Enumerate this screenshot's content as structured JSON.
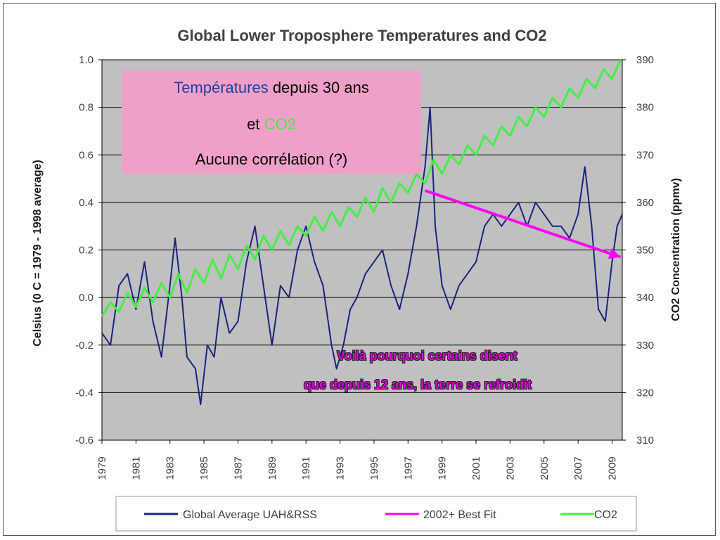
{
  "chart_data": {
    "type": "line",
    "title": "Global Lower Troposphere  Temperatures  and CO2",
    "ylabel_left": "Celsius (0 C = 1979 - 1998 average)",
    "ylabel_right": "CO2 Concentration (ppmv)",
    "ylim_left": [
      -0.6,
      1.0
    ],
    "ylim_right": [
      310,
      390
    ],
    "xlim": [
      1979,
      2009.6
    ],
    "left_ticks": [
      "1.0",
      "0.8",
      "0.6",
      "0.4",
      "0.2",
      "0.0",
      "-0.2",
      "-0.4",
      "-0.6"
    ],
    "right_ticks": [
      "390",
      "380",
      "370",
      "360",
      "350",
      "340",
      "330",
      "320",
      "310"
    ],
    "x_ticks": [
      "1979",
      "1981",
      "1983",
      "1985",
      "1987",
      "1989",
      "1991",
      "1993",
      "1995",
      "1997",
      "1999",
      "2001",
      "2003",
      "2005",
      "2007",
      "2009"
    ],
    "grid": true,
    "series": [
      {
        "name": "Global Average UAH&RSS",
        "color": "#1a237e",
        "axis": "left",
        "x": [
          1979.0,
          1979.5,
          1980.0,
          1980.5,
          1981.0,
          1981.5,
          1982.0,
          1982.5,
          1983.0,
          1983.3,
          1983.7,
          1984.0,
          1984.5,
          1984.8,
          1985.2,
          1985.6,
          1986.0,
          1986.5,
          1987.0,
          1987.5,
          1988.0,
          1988.5,
          1989.0,
          1989.5,
          1990.0,
          1990.5,
          1991.0,
          1991.5,
          1992.0,
          1992.5,
          1992.8,
          1993.2,
          1993.6,
          1994.0,
          1994.5,
          1995.0,
          1995.5,
          1996.0,
          1996.5,
          1997.0,
          1997.5,
          1998.0,
          1998.3,
          1998.6,
          1999.0,
          1999.5,
          2000.0,
          2000.5,
          2001.0,
          2001.5,
          2002.0,
          2002.5,
          2003.0,
          2003.5,
          2004.0,
          2004.5,
          2005.0,
          2005.5,
          2006.0,
          2006.5,
          2007.0,
          2007.4,
          2007.8,
          2008.2,
          2008.6,
          2009.0,
          2009.3,
          2009.6
        ],
        "values": [
          -0.15,
          -0.2,
          0.05,
          0.1,
          -0.05,
          0.15,
          -0.1,
          -0.25,
          0.05,
          0.25,
          0.0,
          -0.25,
          -0.3,
          -0.45,
          -0.2,
          -0.25,
          0.0,
          -0.15,
          -0.1,
          0.15,
          0.3,
          0.05,
          -0.2,
          0.05,
          0.0,
          0.2,
          0.3,
          0.15,
          0.05,
          -0.2,
          -0.3,
          -0.2,
          -0.05,
          0.0,
          0.1,
          0.15,
          0.2,
          0.05,
          -0.05,
          0.1,
          0.3,
          0.55,
          0.8,
          0.3,
          0.05,
          -0.05,
          0.05,
          0.1,
          0.15,
          0.3,
          0.35,
          0.3,
          0.35,
          0.4,
          0.3,
          0.4,
          0.35,
          0.3,
          0.3,
          0.25,
          0.35,
          0.55,
          0.3,
          -0.05,
          -0.1,
          0.15,
          0.3,
          0.35
        ]
      },
      {
        "name": "2002+ Best Fit",
        "color": "#ff00ff",
        "axis": "left",
        "x": [
          1998.0,
          2009.5
        ],
        "values": [
          0.45,
          0.17
        ]
      },
      {
        "name": "CO2",
        "color": "#44ee44",
        "axis": "right",
        "x": [
          1979.0,
          1979.5,
          1980.0,
          1980.5,
          1981.0,
          1981.5,
          1982.0,
          1982.5,
          1983.0,
          1983.5,
          1984.0,
          1984.5,
          1985.0,
          1985.5,
          1986.0,
          1986.5,
          1987.0,
          1987.5,
          1988.0,
          1988.5,
          1989.0,
          1989.5,
          1990.0,
          1990.5,
          1991.0,
          1991.5,
          1992.0,
          1992.5,
          1993.0,
          1993.5,
          1994.0,
          1994.5,
          1995.0,
          1995.5,
          1996.0,
          1996.5,
          1997.0,
          1997.5,
          1998.0,
          1998.5,
          1999.0,
          1999.5,
          2000.0,
          2000.5,
          2001.0,
          2001.5,
          2002.0,
          2002.5,
          2003.0,
          2003.5,
          2004.0,
          2004.5,
          2005.0,
          2005.5,
          2006.0,
          2006.5,
          2007.0,
          2007.5,
          2008.0,
          2008.5,
          2009.0,
          2009.5
        ],
        "values": [
          336,
          339,
          337,
          341,
          338,
          342,
          339,
          343,
          340,
          345,
          341,
          346,
          343,
          348,
          344,
          349,
          346,
          351,
          348,
          353,
          350,
          354,
          351,
          355,
          353,
          357,
          354,
          358,
          355,
          359,
          357,
          361,
          358,
          363,
          360,
          364,
          362,
          366,
          364,
          369,
          366,
          370,
          368,
          372,
          370,
          374,
          372,
          376,
          374,
          378,
          376,
          380,
          378,
          382,
          380,
          384,
          382,
          386,
          384,
          388,
          386,
          390
        ]
      }
    ],
    "legend": {
      "placement": "bottom",
      "entries": [
        "Global Average UAH&RSS",
        "2002+ Best Fit",
        "CO2"
      ]
    }
  },
  "annotations": {
    "box_line1_a": "Températures",
    "box_line1_b": " depuis 30 ans",
    "box_line2_a": "et ",
    "box_line2_b": "CO2",
    "box_line3": "Aucune corrélation (?)",
    "overlay_line1": "Voilà pourquoi certains disent",
    "overlay_line2": "que depuis 12 ans, la terre se refroidit"
  },
  "colors": {
    "plot_background": "#c0c0c0",
    "temperature_word": "#1f3fa0",
    "co2_word": "#44ee44",
    "box_background": "#f0a0c8"
  }
}
